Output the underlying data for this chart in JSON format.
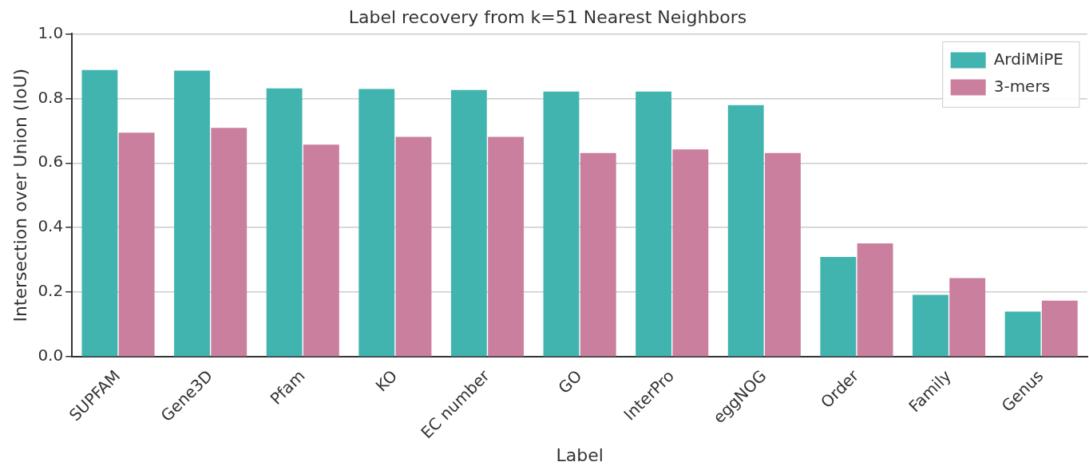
{
  "chart_data": {
    "type": "bar",
    "title": "Label recovery from k=51 Nearest Neighbors",
    "xlabel": "Label",
    "ylabel": "Intersection over Union (IoU)",
    "categories": [
      "SUPFAM",
      "Gene3D",
      "Pfam",
      "KO",
      "EC number",
      "GO",
      "InterPro",
      "eggNOG",
      "Order",
      "Family",
      "Genus"
    ],
    "series": [
      {
        "name": "ArdiMiPE",
        "color": "#42b4af",
        "values": [
          0.888,
          0.886,
          0.831,
          0.829,
          0.826,
          0.821,
          0.821,
          0.779,
          0.309,
          0.192,
          0.14
        ]
      },
      {
        "name": "3-mers",
        "color": "#c97f9d",
        "values": [
          0.694,
          0.709,
          0.657,
          0.681,
          0.681,
          0.631,
          0.642,
          0.631,
          0.351,
          0.244,
          0.174
        ]
      }
    ],
    "ylim": [
      0,
      1
    ],
    "yticks": [
      {
        "value": 0,
        "label": "0.0"
      },
      {
        "value": 0.2,
        "label": "0.2"
      },
      {
        "value": 0.4,
        "label": "0.4"
      },
      {
        "value": 0.6,
        "label": "0.6"
      },
      {
        "value": 0.8,
        "label": "0.8"
      },
      {
        "value": 1,
        "label": "1.0"
      }
    ],
    "grid": "y",
    "legend": "top right"
  }
}
